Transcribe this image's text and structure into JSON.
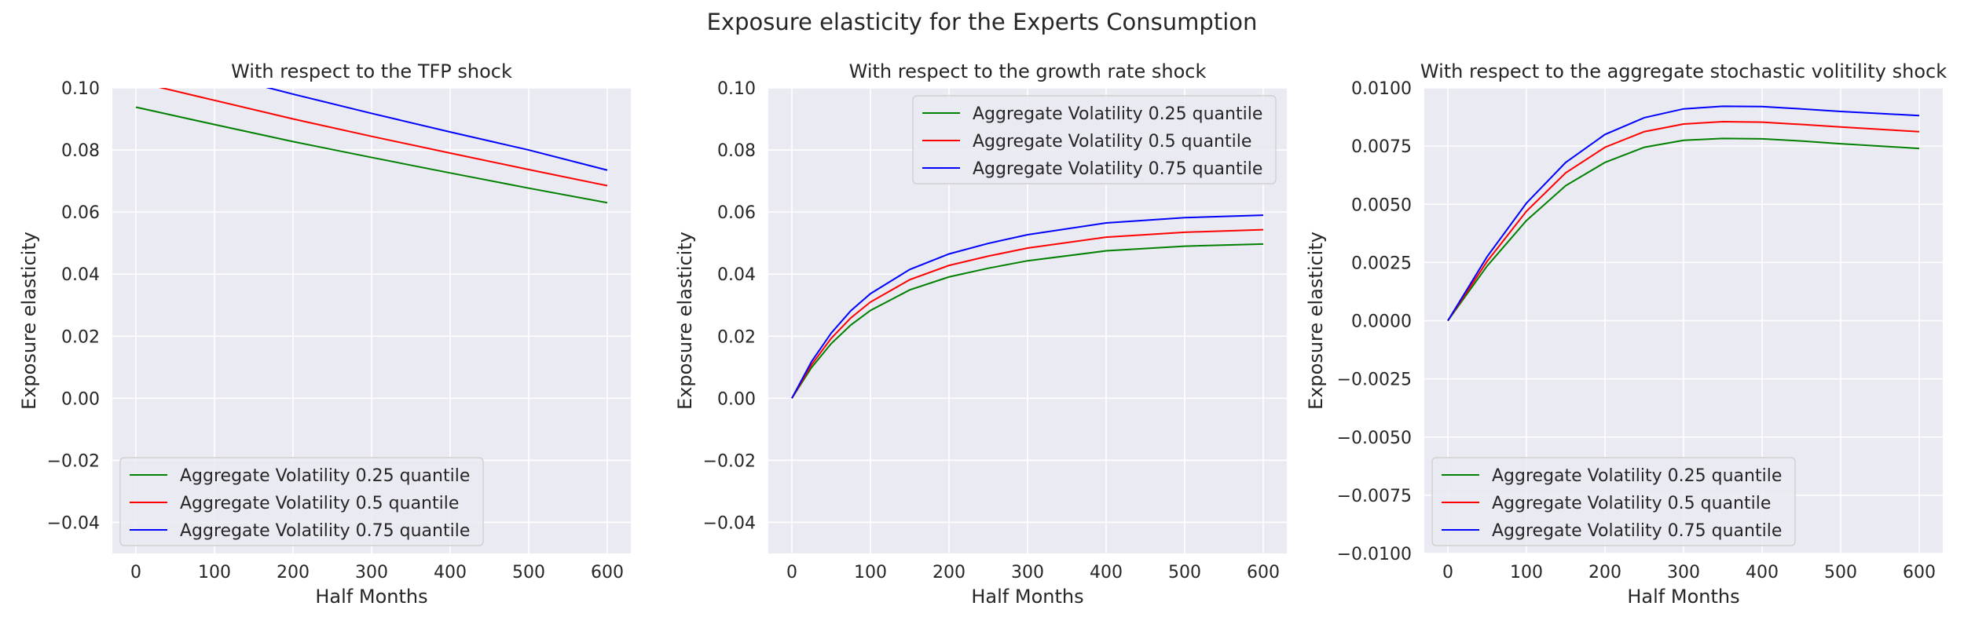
{
  "chart_data": {
    "title": "Exposure elasticity for the Experts Consumption",
    "panels": [
      {
        "type": "line",
        "title": "With respect to the TFP shock",
        "xlabel": "Half Months",
        "ylabel": "Exposure elasticity",
        "xlim": [
          -30,
          630
        ],
        "ylim": [
          -0.05,
          0.1
        ],
        "xticks": [
          "0",
          "100",
          "200",
          "300",
          "400",
          "500",
          "600"
        ],
        "yticks": [
          "−0.04",
          "−0.02",
          "0.00",
          "0.02",
          "0.04",
          "0.06",
          "0.08",
          "0.10"
        ],
        "legend_position": "lower-left",
        "grid": true,
        "series": [
          {
            "name": "Aggregate Volatility 0.25 quantile",
            "color": "#008000",
            "x": [
              0,
              100,
              200,
              300,
              400,
              500,
              600
            ],
            "y": [
              0.0938,
              0.0882,
              0.0827,
              0.0776,
              0.0726,
              0.0677,
              0.063
            ]
          },
          {
            "name": "Aggregate Volatility 0.5 quantile",
            "color": "#ff0000",
            "x": [
              0,
              100,
              200,
              300,
              400,
              500,
              600
            ],
            "y": [
              0.102,
              0.096,
              0.09,
              0.0844,
              0.079,
              0.0737,
              0.0685
            ]
          },
          {
            "name": "Aggregate Volatility 0.75 quantile",
            "color": "#0000ff",
            "x": [
              0,
              100,
              200,
              300,
              400,
              500,
              600
            ],
            "y": [
              0.111,
              0.1045,
              0.098,
              0.0918,
              0.0858,
              0.08,
              0.0735
            ]
          }
        ]
      },
      {
        "type": "line",
        "title": "With respect to the growth rate shock",
        "xlabel": "Half Months",
        "ylabel": "Exposure elasticity",
        "xlim": [
          -30,
          630
        ],
        "ylim": [
          -0.05,
          0.1
        ],
        "xticks": [
          "0",
          "100",
          "200",
          "300",
          "400",
          "500",
          "600"
        ],
        "yticks": [
          "−0.04",
          "−0.02",
          "0.00",
          "0.02",
          "0.04",
          "0.06",
          "0.08",
          "0.10"
        ],
        "legend_position": "upper-right",
        "grid": true,
        "series": [
          {
            "name": "Aggregate Volatility 0.25 quantile",
            "color": "#008000",
            "x": [
              0,
              25,
              50,
              75,
              100,
              150,
              200,
              250,
              300,
              400,
              500,
              600
            ],
            "y": [
              0.0,
              0.0099,
              0.0176,
              0.0236,
              0.0283,
              0.0349,
              0.0391,
              0.0419,
              0.0443,
              0.0475,
              0.049,
              0.0497
            ]
          },
          {
            "name": "Aggregate Volatility 0.5 quantile",
            "color": "#ff0000",
            "x": [
              0,
              25,
              50,
              75,
              100,
              150,
              200,
              250,
              300,
              400,
              500,
              600
            ],
            "y": [
              0.0,
              0.0108,
              0.0193,
              0.0259,
              0.031,
              0.0382,
              0.0428,
              0.0458,
              0.0484,
              0.0519,
              0.0535,
              0.0543
            ]
          },
          {
            "name": "Aggregate Volatility 0.75 quantile",
            "color": "#0000ff",
            "x": [
              0,
              25,
              50,
              75,
              100,
              150,
              200,
              250,
              300,
              400,
              500,
              600
            ],
            "y": [
              0.0,
              0.0118,
              0.021,
              0.0282,
              0.0337,
              0.0415,
              0.0465,
              0.0499,
              0.0527,
              0.0565,
              0.0582,
              0.059
            ]
          }
        ]
      },
      {
        "type": "line",
        "title": "With respect to the aggregate stochastic volitility shock",
        "xlabel": "Half Months",
        "ylabel": "Exposure elasticity",
        "xlim": [
          -30,
          630
        ],
        "ylim": [
          -0.01,
          0.01
        ],
        "xticks": [
          "0",
          "100",
          "200",
          "300",
          "400",
          "500",
          "600"
        ],
        "yticks": [
          "−0.0100",
          "−0.0075",
          "−0.0050",
          "−0.0025",
          "0.0000",
          "0.0025",
          "0.0050",
          "0.0075",
          "0.0100"
        ],
        "legend_position": "lower-left",
        "grid": true,
        "series": [
          {
            "name": "Aggregate Volatility 0.25 quantile",
            "color": "#008000",
            "x": [
              0,
              50,
              100,
              150,
              200,
              250,
              300,
              350,
              400,
              450,
              500,
              550,
              600
            ],
            "y": [
              0.0,
              0.00235,
              0.0043,
              0.0058,
              0.0068,
              0.00745,
              0.00775,
              0.00783,
              0.00781,
              0.00772,
              0.0076,
              0.0075,
              0.0074
            ]
          },
          {
            "name": "Aggregate Volatility 0.5 quantile",
            "color": "#ff0000",
            "x": [
              0,
              50,
              100,
              150,
              200,
              250,
              300,
              350,
              400,
              450,
              500,
              550,
              600
            ],
            "y": [
              0.0,
              0.00255,
              0.0047,
              0.00635,
              0.00745,
              0.00812,
              0.00845,
              0.00855,
              0.00853,
              0.00843,
              0.00832,
              0.00822,
              0.00812
            ]
          },
          {
            "name": "Aggregate Volatility 0.75 quantile",
            "color": "#0000ff",
            "x": [
              0,
              50,
              100,
              150,
              200,
              250,
              300,
              350,
              400,
              450,
              500,
              550,
              600
            ],
            "y": [
              0.0,
              0.00275,
              0.00505,
              0.0068,
              0.008,
              0.00872,
              0.0091,
              0.00921,
              0.0092,
              0.0091,
              0.00899,
              0.0089,
              0.00881
            ]
          }
        ]
      }
    ]
  }
}
